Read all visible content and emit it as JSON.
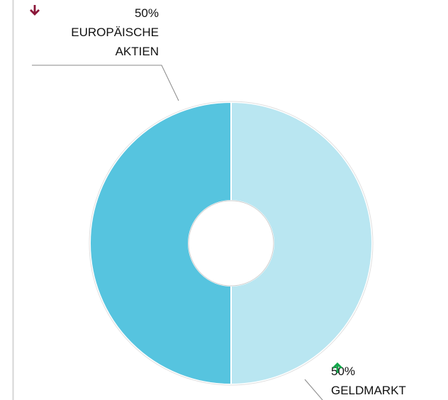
{
  "chart_data": {
    "type": "donut",
    "categories": [
      "GELDMARKT",
      "EUROPÄISCHE AKTIEN"
    ],
    "values": [
      50,
      50
    ],
    "value_labels": [
      "50%",
      "50%"
    ],
    "colors": [
      "#b9e6f1",
      "#56c4df"
    ]
  }
}
